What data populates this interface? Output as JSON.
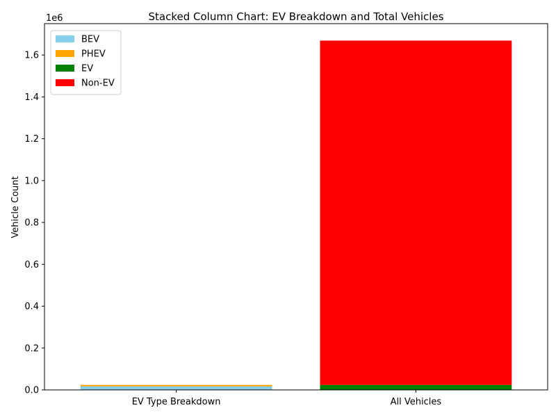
{
  "chart_data": {
    "type": "bar",
    "stacked": true,
    "title": "Stacked Column Chart: EV Breakdown and Total Vehicles",
    "xlabel": "",
    "ylabel": "Vehicle Count",
    "y_scale_label": "1e6",
    "ylim": [
      0,
      1750000
    ],
    "categories": [
      "EV Type Breakdown",
      "All Vehicles"
    ],
    "y_ticks": [
      0,
      200000,
      400000,
      600000,
      800000,
      1000000,
      1200000,
      1400000,
      1600000
    ],
    "y_tick_labels": [
      "0.0",
      "0.2",
      "0.4",
      "0.6",
      "0.8",
      "1.0",
      "1.2",
      "1.4",
      "1.6"
    ],
    "series": [
      {
        "name": "BEV",
        "color": "#87ceeb",
        "values": [
          17000,
          0
        ]
      },
      {
        "name": "PHEV",
        "color": "#ffa500",
        "values": [
          7000,
          0
        ]
      },
      {
        "name": "EV",
        "color": "#008000",
        "values": [
          0,
          24000
        ]
      },
      {
        "name": "Non-EV",
        "color": "#ff0000",
        "values": [
          0,
          1645000
        ]
      }
    ],
    "legend_position": "top-left",
    "grid": false
  }
}
